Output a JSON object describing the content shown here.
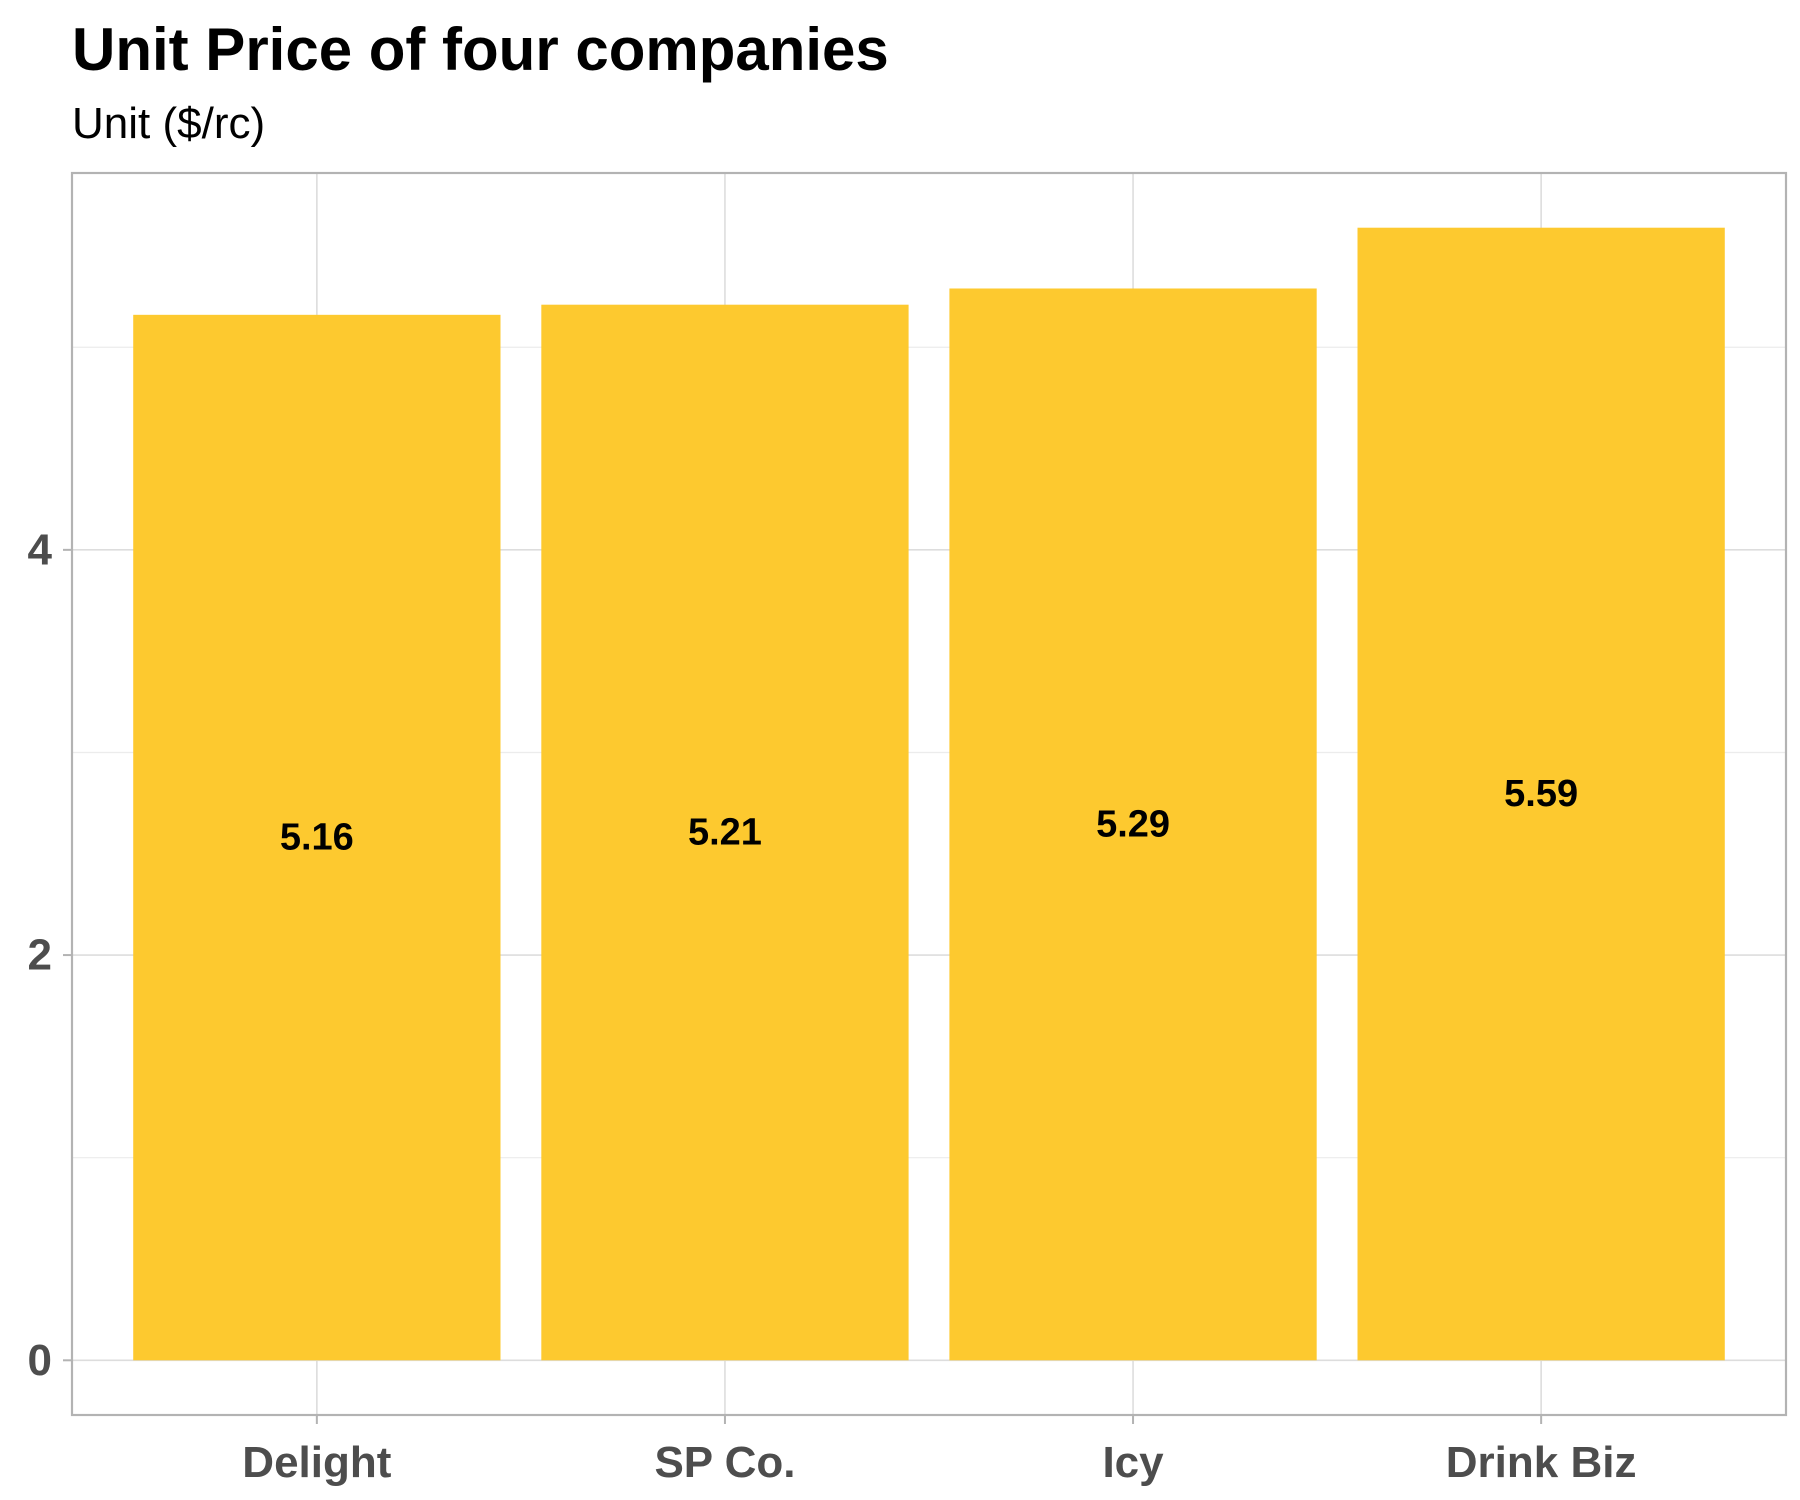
{
  "chart_data": {
    "type": "bar",
    "title": "Unit Price of four companies",
    "subtitle": "Unit ($/rc)",
    "xlabel": "",
    "ylabel": "",
    "categories": [
      "Delight",
      "SP Co.",
      "Icy",
      "Drink Biz"
    ],
    "values": [
      5.16,
      5.21,
      5.29,
      5.59
    ],
    "data_labels": [
      "5.16",
      "5.21",
      "5.29",
      "5.59"
    ],
    "ylim": [
      -0.27,
      5.86
    ],
    "yticks": [
      0,
      2,
      4
    ],
    "ytick_labels": [
      "0",
      "2",
      "4"
    ],
    "yminor": [
      1,
      3,
      5
    ],
    "grid": true,
    "legend": "none",
    "bar_color": "#FDC92F"
  }
}
